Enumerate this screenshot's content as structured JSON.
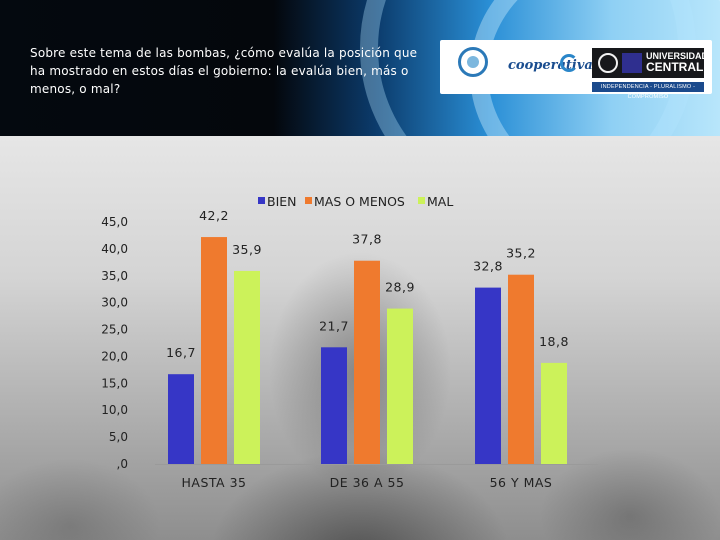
{
  "header": {
    "question": "Sobre este tema de las bombas, ¿cómo evalúa la posición que ha mostrado en estos días el gobierno: la evalúa bien, más o menos, o mal?"
  },
  "logos": {
    "coop_text": "cooperativa",
    "central_line1": "UNIVERSIDAD",
    "central_line2": "CENTRAL",
    "central_tagline": "INDEPENDENCIA - PLURALISMO - COMPROMISO"
  },
  "colors": {
    "bien": "#3636c6",
    "mas_o_menos": "#ef7a2e",
    "mal": "#ccf25a",
    "axis_text": "#222222"
  },
  "chart_data": {
    "type": "bar",
    "title": "",
    "xlabel": "",
    "ylabel": "",
    "legend_position": "top",
    "grid": false,
    "ylim": [
      0,
      45
    ],
    "y_ticks": [
      0,
      5,
      10,
      15,
      20,
      25,
      30,
      35,
      40,
      45
    ],
    "y_tick_labels": [
      ",0",
      "5,0",
      "10,0",
      "15,0",
      "20,0",
      "25,0",
      "30,0",
      "35,0",
      "40,0",
      "45,0"
    ],
    "categories": [
      "HASTA 35",
      "DE 36 A 55",
      "56 Y MAS"
    ],
    "series": [
      {
        "name": "BIEN",
        "values": [
          16.7,
          21.7,
          32.8
        ],
        "labels": [
          "16,7",
          "21,7",
          "32,8"
        ]
      },
      {
        "name": "MAS O MENOS",
        "values": [
          42.2,
          37.8,
          35.2
        ],
        "labels": [
          "42,2",
          "37,8",
          "35,2"
        ]
      },
      {
        "name": "MAL",
        "values": [
          35.9,
          28.9,
          18.8
        ],
        "labels": [
          "35,9",
          "28,9",
          "18,8"
        ]
      }
    ]
  }
}
